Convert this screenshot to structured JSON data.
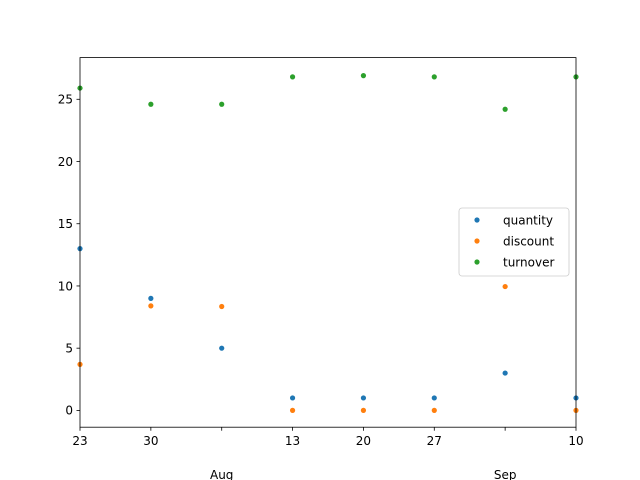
{
  "chart_data": {
    "type": "scatter",
    "x": [
      "Jul 23",
      "Jul 30",
      "Aug 6",
      "Aug 13",
      "Aug 20",
      "Aug 27",
      "Sep 3",
      "Sep 10"
    ],
    "xticks": [
      {
        "label": "23",
        "sub": ""
      },
      {
        "label": "30",
        "sub": ""
      },
      {
        "label": "",
        "sub": "Aug"
      },
      {
        "label": "13",
        "sub": ""
      },
      {
        "label": "20",
        "sub": ""
      },
      {
        "label": "27",
        "sub": ""
      },
      {
        "label": "",
        "sub": "Sep"
      },
      {
        "label": "10",
        "sub": ""
      }
    ],
    "series": [
      {
        "name": "quantity",
        "color": "#1f77b4",
        "values": [
          13,
          9,
          5,
          1,
          1,
          1,
          3,
          1
        ]
      },
      {
        "name": "discount",
        "color": "#ff7f0e",
        "values": [
          3.7,
          8.4,
          8.35,
          0,
          0,
          0,
          9.95,
          0
        ]
      },
      {
        "name": "turnover",
        "color": "#2ca02c",
        "values": [
          25.9,
          24.6,
          24.6,
          26.8,
          26.9,
          26.8,
          24.2,
          26.8
        ]
      }
    ],
    "yticks": [
      0,
      5,
      10,
      15,
      20,
      25
    ],
    "ylim": [
      -1.35,
      28.35
    ],
    "legend_placement": "center-right",
    "grid": false
  }
}
